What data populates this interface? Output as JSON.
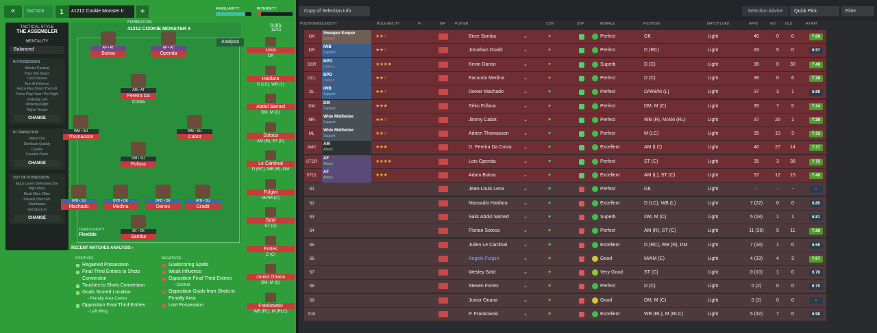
{
  "topbar": {
    "back": "«",
    "tactics_label": "TACTICS",
    "slot": "1",
    "tactic_name": "41212 Cookie Monster II",
    "add": "+",
    "familiarity_label": "FAMILIARITY",
    "intensity_label": "INTENSITY",
    "familiarity_fraction": 0.82,
    "intensity_fraction": 0.12
  },
  "sidebar": {
    "style_title": "TACTICAL STYLE",
    "style_name": "THE ASSEMBLER",
    "mentality_title": "MENTALITY",
    "mentality_value": "Balanced",
    "in_possession_title": "IN POSSESSION",
    "in_possession": [
      "Shorter Passing",
      "Pass Into Space",
      "Low Crosses",
      "Run At Defence",
      "Focus Play Down The Left",
      "Focus Play Down The Right",
      "Underlap Left",
      "Underlap Right",
      "Higher Tempo"
    ],
    "in_transition_title": "IN TRANSITION",
    "in_transition": [
      "Roll It Out",
      "Distribute Quickly",
      "Counter",
      "Counter-Press"
    ],
    "out_of_possession_title": "OUT OF POSSESSION",
    "out_of_possession": [
      "Much Lower Defensive Line",
      "High Press",
      "Much More Often",
      "Prevent Short GK",
      "Distribution",
      "Get Stuck In"
    ],
    "change_label": "CHANGE"
  },
  "formation": {
    "label": "FORMATION",
    "name": "41212 COOKIE MONSTER II",
    "analysis": "Analysis",
    "fluidity_label": "TEAM FLUIDITY",
    "fluidity_value": "Flexible"
  },
  "pitch_players": [
    {
      "role": "AF • AT",
      "name": "Buksa",
      "type": "att"
    },
    {
      "role": "AF • AT",
      "name": "Openda",
      "type": "att"
    },
    {
      "role": "AM • AT",
      "name": "Pereira Da Costa",
      "type": "mid"
    },
    {
      "role": "WM • SU",
      "name": "Thomasson",
      "type": "mid"
    },
    {
      "role": "WM • SU",
      "name": "Cabot",
      "type": "mid"
    },
    {
      "role": "DM • SU",
      "name": "Fofana",
      "type": "mid"
    },
    {
      "role": "IWB • SU",
      "name": "Machado",
      "type": "def"
    },
    {
      "role": "BPD • DE",
      "name": "Medina",
      "type": "def"
    },
    {
      "role": "BPD • DE",
      "name": "Danso",
      "type": "def"
    },
    {
      "role": "IWB • SU",
      "name": "Gradit",
      "type": "def"
    },
    {
      "role": "SK • DE",
      "name": "Samba",
      "type": "mid"
    }
  ],
  "subs": {
    "title": "SUBS:",
    "count": "12/15",
    "list": [
      {
        "name": "Leca",
        "pos": "GK"
      },
      {
        "name": "Haidara",
        "pos": "D (LC), WB (L)"
      },
      {
        "name": "Abdul Samed",
        "pos": "DM, M (C)"
      },
      {
        "name": "Sotoca",
        "pos": "AM (R), ST (C)"
      },
      {
        "name": "Le Cardinal",
        "pos": "D (RC), WB (R), DM"
      },
      {
        "name": "Fulgini",
        "pos": "M/AM (C)"
      },
      {
        "name": "Saïd",
        "pos": "ST (C)"
      },
      {
        "name": "Fortes",
        "pos": "D (C)"
      },
      {
        "name": "Junior Onana",
        "pos": "DM, M (C)"
      },
      {
        "name": "Frankowski",
        "pos": "WB (RL), M (RLC)"
      }
    ]
  },
  "recent": {
    "title": "RECENT MATCHES ANALYSIS ›",
    "positives_label": "POSITIVES",
    "negatives_label": "NEGATIVES",
    "positives": [
      {
        "text": "Regained Possession",
        "sub": false
      },
      {
        "text": "Final Third Entries to Shots Conversion",
        "sub": false
      },
      {
        "text": "Touches to Shots Conversion",
        "sub": false
      },
      {
        "text": "Goals Scored Location",
        "sub": false
      },
      {
        "text": "- Penalty Area Centre",
        "sub": true
      },
      {
        "text": "Opposition Final Third Entries",
        "sub": false
      },
      {
        "text": "- Left Wing",
        "sub": true
      }
    ],
    "negatives": [
      {
        "text": "Goalscoring Spells",
        "sub": false
      },
      {
        "text": "Weak Influence",
        "sub": false
      },
      {
        "text": "Opposition Final Third Entries",
        "sub": false
      },
      {
        "text": "- Central",
        "sub": true
      },
      {
        "text": "Opposition Goals from Shots in Penalty Area",
        "sub": false
      },
      {
        "text": "Lost Possession",
        "sub": false
      }
    ]
  },
  "toolbar": {
    "copy_selection": "Copy of Selection Info",
    "selection_advice": "Selection Advice",
    "quick_pick": "Quick Pick",
    "filter": "Filter"
  },
  "columns": {
    "position_role_duty": "POSITION/ROLE/DUTY",
    "role_ability": "ROLE ABILITY",
    "pi": "PI",
    "inf": "INF",
    "player": "PLAYER",
    "con": "CON",
    "shp": "SHP",
    "morale": "MORALE",
    "position": "POSITION",
    "match_load": "MATCH LOAD",
    "apps": "APPS",
    "ast": "AST",
    "gls": "GLS",
    "av_rat": "AV RAT"
  },
  "rows": [
    {
      "code": "GK",
      "role": "Sweeper Keeper",
      "duty": "Defend",
      "band": "#6e5e55",
      "stars": "★★☆",
      "player": "Brice Samba",
      "morale": "Perfect",
      "mcolor": "#3fbf4f",
      "pos": "GK",
      "load": "Light",
      "apps": "40",
      "ast": "0",
      "gls": "0",
      "rat": "7.09",
      "rcolor": "#4f9a2c"
    },
    {
      "code": "DR",
      "role": "IWB",
      "duty": "Support",
      "band": "#3a5e8a",
      "stars": "★★☆",
      "player": "Jonathan Gradit",
      "morale": "Perfect",
      "mcolor": "#3fbf4f",
      "pos": "D (RC)",
      "load": "Light",
      "apps": "33",
      "ast": "5",
      "gls": "0",
      "rat": "6.97",
      "rcolor": "#2e3a4a"
    },
    {
      "code": "DCR",
      "role": "BPD",
      "duty": "Defend",
      "band": "#3a5e8a",
      "stars": "★★★★",
      "player": "Kevin Danso",
      "morale": "Superb",
      "mcolor": "#3fbf4f",
      "pos": "D (C)",
      "load": "Light",
      "apps": "36",
      "ast": "0",
      "gls": "30",
      "rat": "7.46",
      "rcolor": "#4f9a2c"
    },
    {
      "code": "DCL",
      "role": "BPD",
      "duty": "Defend",
      "band": "#3a5e8a",
      "stars": "★★☆",
      "player": "Facundo Medina",
      "morale": "Perfect",
      "mcolor": "#3fbf4f",
      "pos": "D (C)",
      "load": "Light",
      "apps": "36",
      "ast": "0",
      "gls": "6",
      "rat": "7.28",
      "rcolor": "#4f9a2c"
    },
    {
      "code": "DL",
      "role": "IWB",
      "duty": "Support",
      "band": "#3a5e8a",
      "stars": "★★☆",
      "player": "Deiver Machado",
      "morale": "Perfect",
      "mcolor": "#3fbf4f",
      "pos": "D/WB/M (L)",
      "load": "Light",
      "apps": "37",
      "ast": "3",
      "gls": "1",
      "rat": "6.89",
      "rcolor": "#2e3a4a"
    },
    {
      "code": "DM",
      "role": "DM",
      "duty": "Support",
      "band": "#4a4f55",
      "stars": "★★★",
      "player": "Séko Fofana",
      "morale": "Perfect",
      "mcolor": "#3fbf4f",
      "pos": "DM, M (C)",
      "load": "Light",
      "apps": "35",
      "ast": "7",
      "gls": "5",
      "rat": "7.34",
      "rcolor": "#4f9a2c"
    },
    {
      "code": "MR",
      "role": "Wide Midfielder",
      "duty": "Support",
      "band": "#4a4f55",
      "stars": "★★☆",
      "player": "Jimmy Cabot",
      "morale": "Perfect",
      "mcolor": "#3fbf4f",
      "pos": "WB (R), M/AM (RL)",
      "load": "Light",
      "apps": "37",
      "ast": "25",
      "gls": "1",
      "rat": "7.36",
      "rcolor": "#4f9a2c"
    },
    {
      "code": "ML",
      "role": "Wide Midfielder",
      "duty": "Support",
      "band": "#4a4f55",
      "stars": "★★☆",
      "player": "Adrien Thomasson",
      "morale": "Perfect",
      "mcolor": "#3fbf4f",
      "pos": "M (LC)",
      "load": "Light",
      "apps": "35",
      "ast": "10",
      "gls": "3",
      "rat": "7.33",
      "rcolor": "#4f9a2c"
    },
    {
      "code": "AMC",
      "role": "AM",
      "duty": "Attack",
      "band": "#2e3133",
      "stars": "★★★",
      "player": "D. Pereira Da Costa",
      "morale": "Excellent",
      "mcolor": "#3fbf4f",
      "pos": "AM (LC)",
      "load": "Light",
      "apps": "40",
      "ast": "27",
      "gls": "14",
      "rat": "7.37",
      "rcolor": "#4f9a2c"
    },
    {
      "code": "STCR",
      "role": "AF",
      "duty": "Attack",
      "band": "#5a4a78",
      "stars": "★★★★",
      "player": "Lois Openda",
      "morale": "Perfect",
      "mcolor": "#3fbf4f",
      "pos": "ST (C)",
      "load": "Light",
      "apps": "35",
      "ast": "3",
      "gls": "38",
      "rat": "7.75",
      "rcolor": "#4f9a2c"
    },
    {
      "code": "STCL",
      "role": "AF",
      "duty": "Attack",
      "band": "#5a4a78",
      "stars": "★★★",
      "player": "Adam Buksa",
      "morale": "Excellent",
      "mcolor": "#3fbf4f",
      "pos": "AM (L), ST (C)",
      "load": "Light",
      "apps": "37",
      "ast": "12",
      "gls": "15",
      "rat": "7.46",
      "rcolor": "#4f9a2c"
    },
    {
      "code": "S1",
      "role": "",
      "duty": "",
      "band": "",
      "stars": "",
      "player": "Jean-Louis Leca",
      "morale": "Perfect",
      "mcolor": "#3fbf4f",
      "pos": "GK",
      "load": "Light",
      "apps": "-",
      "ast": "-",
      "gls": "-",
      "rat": "-",
      "rcolor": "#2e3a4a"
    },
    {
      "code": "S2",
      "role": "",
      "duty": "",
      "band": "",
      "stars": "",
      "player": "Massadio Haïdara",
      "morale": "Excellent",
      "mcolor": "#3fbf4f",
      "pos": "D (LC), WB (L)",
      "load": "Light",
      "apps": "7 (22)",
      "ast": "0",
      "gls": "0",
      "rat": "6.85",
      "rcolor": "#2e3a4a"
    },
    {
      "code": "S3",
      "role": "",
      "duty": "",
      "band": "",
      "stars": "",
      "player": "Salis Abdul Samed",
      "morale": "Superb",
      "mcolor": "#3fbf4f",
      "pos": "DM, M (C)",
      "load": "Light",
      "apps": "5 (18)",
      "ast": "1",
      "gls": "1",
      "rat": "6.81",
      "rcolor": "#2e3a4a"
    },
    {
      "code": "S4",
      "role": "",
      "duty": "",
      "band": "",
      "stars": "",
      "player": "Florian Sotoca",
      "morale": "Perfect",
      "mcolor": "#3fbf4f",
      "pos": "AM (R), ST (C)",
      "load": "Light",
      "apps": "11 (26)",
      "ast": "5",
      "gls": "11",
      "rat": "7.26",
      "rcolor": "#4f9a2c"
    },
    {
      "code": "S5",
      "role": "",
      "duty": "",
      "band": "",
      "stars": "",
      "player": "Julien Le Cardinal",
      "morale": "Excellent",
      "mcolor": "#3fbf4f",
      "pos": "D (RC), WB (R), DM",
      "load": "Light",
      "apps": "7 (18)",
      "ast": "1",
      "gls": "0",
      "rat": "6.59",
      "rcolor": "#2e3a4a"
    },
    {
      "code": "S6",
      "role": "",
      "duty": "",
      "band": "",
      "stars": "",
      "player": "Angelo Fulgini",
      "morale": "Good",
      "mcolor": "#d8c23a",
      "pos": "M/AM (C)",
      "load": "Light",
      "apps": "4 (33)",
      "ast": "4",
      "gls": "3",
      "rat": "7.07",
      "rcolor": "#4f9a2c",
      "blue": true
    },
    {
      "code": "S7",
      "role": "",
      "duty": "",
      "band": "",
      "stars": "",
      "player": "Wesley Saïd",
      "morale": "Very Good",
      "mcolor": "#8ac93a",
      "pos": "ST (C)",
      "load": "Light",
      "apps": "0 (10)",
      "ast": "1",
      "gls": "0",
      "rat": "6.76",
      "rcolor": "#2e3a4a"
    },
    {
      "code": "S8",
      "role": "",
      "duty": "",
      "band": "",
      "stars": "",
      "player": "Steven Fortes",
      "morale": "Perfect",
      "mcolor": "#3fbf4f",
      "pos": "D (C)",
      "load": "Light",
      "apps": "0 (2)",
      "ast": "0",
      "gls": "0",
      "rat": "6.70",
      "rcolor": "#2e3a4a"
    },
    {
      "code": "S9",
      "role": "",
      "duty": "",
      "band": "",
      "stars": "",
      "player": "Junior Onana",
      "morale": "Good",
      "mcolor": "#d8c23a",
      "pos": "DM, M (C)",
      "load": "Light",
      "apps": "0 (2)",
      "ast": "0",
      "gls": "0",
      "rat": "-",
      "rcolor": "#2e3a4a"
    },
    {
      "code": "S10",
      "role": "",
      "duty": "",
      "band": "",
      "stars": "",
      "player": "P. Frankowski",
      "morale": "Excellent",
      "mcolor": "#3fbf4f",
      "pos": "WB (RL), M (RLC)",
      "load": "Light",
      "apps": "5 (32)",
      "ast": "7",
      "gls": "0",
      "rat": "6.98",
      "rcolor": "#2e3a4a"
    }
  ]
}
